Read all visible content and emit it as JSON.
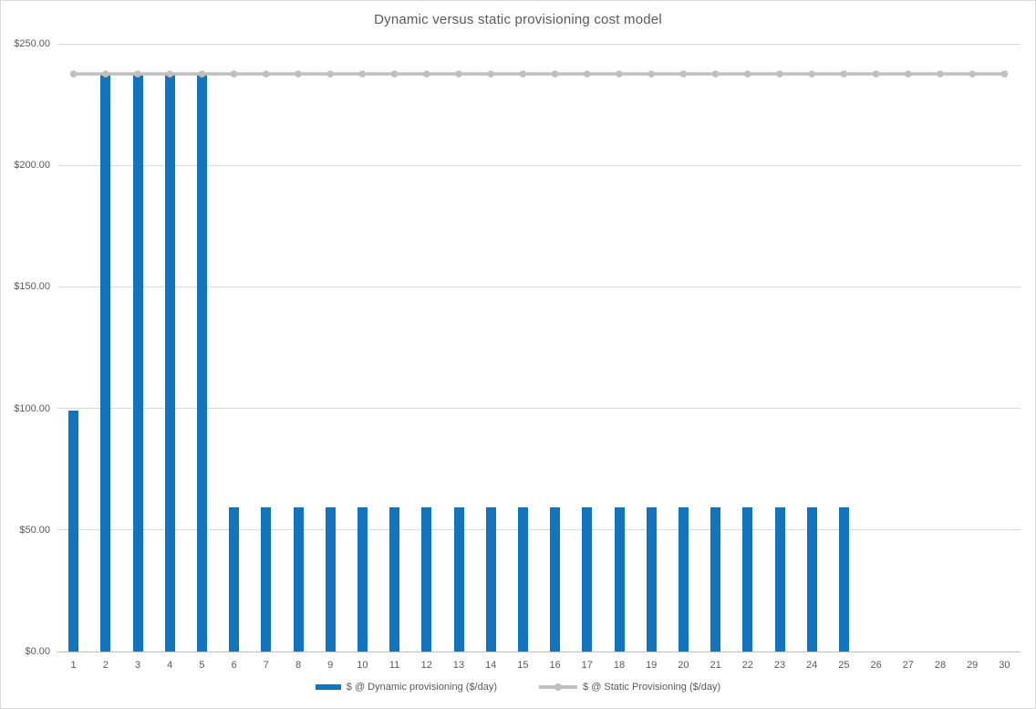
{
  "chart_data": {
    "type": "combo",
    "title": "Dynamic versus static provisioning cost model",
    "xlabel": "",
    "ylabel": "",
    "categories": [
      "1",
      "2",
      "3",
      "4",
      "5",
      "6",
      "7",
      "8",
      "9",
      "10",
      "11",
      "12",
      "13",
      "14",
      "15",
      "16",
      "17",
      "18",
      "19",
      "20",
      "21",
      "22",
      "23",
      "24",
      "25",
      "26",
      "27",
      "28",
      "29",
      "30"
    ],
    "series": [
      {
        "name": "$ @ Dynamic provisioning ($/day)",
        "type": "bar",
        "color": "#1274BC",
        "values": [
          99,
          237.6,
          237.6,
          237.6,
          237.6,
          59.4,
          59.4,
          59.4,
          59.4,
          59.4,
          59.4,
          59.4,
          59.4,
          59.4,
          59.4,
          59.4,
          59.4,
          59.4,
          59.4,
          59.4,
          59.4,
          59.4,
          59.4,
          59.4,
          59.4,
          0,
          0,
          0,
          0,
          0
        ]
      },
      {
        "name": "$ @ Static Provisioning ($/day)",
        "type": "line",
        "color": "#BFBFBF",
        "values": [
          237.6,
          237.6,
          237.6,
          237.6,
          237.6,
          237.6,
          237.6,
          237.6,
          237.6,
          237.6,
          237.6,
          237.6,
          237.6,
          237.6,
          237.6,
          237.6,
          237.6,
          237.6,
          237.6,
          237.6,
          237.6,
          237.6,
          237.6,
          237.6,
          237.6,
          237.6,
          237.6,
          237.6,
          237.6,
          237.6
        ]
      }
    ],
    "ylim": [
      0,
      250
    ],
    "yticks": [
      {
        "value": 0,
        "label": "$0.00"
      },
      {
        "value": 50,
        "label": "$50.00"
      },
      {
        "value": 100,
        "label": "$100.00"
      },
      {
        "value": 150,
        "label": "$150.00"
      },
      {
        "value": 200,
        "label": "$200.00"
      },
      {
        "value": 250,
        "label": "$250.00"
      }
    ],
    "grid": true,
    "legend_position": "bottom",
    "colors": {
      "grid": "#D9D9D9",
      "axis": "#BFBFBF",
      "text": "#595959",
      "chart_border": "#D9D9D9",
      "background": "#FFFFFF"
    }
  }
}
